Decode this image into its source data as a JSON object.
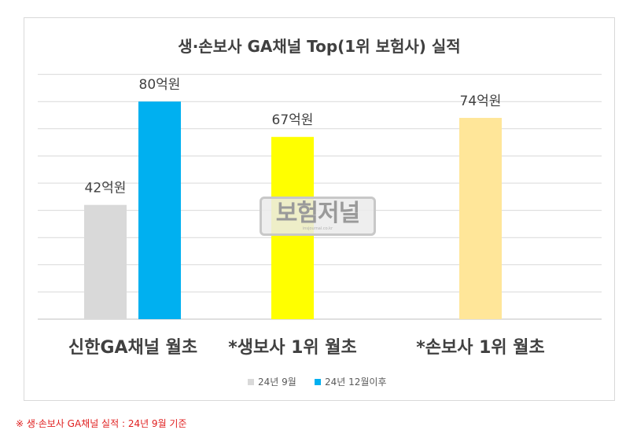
{
  "chart_data": {
    "type": "bar",
    "title": "생·손보사 GA채널  Top(1위 보험사) 실적",
    "categories": [
      "신한GA채널 월초",
      "*생보사 1위 월초",
      "*손보사 1위 월초"
    ],
    "series": [
      {
        "name": "24년 9월",
        "color": "#d9d9d9",
        "values": [
          42,
          null,
          null
        ]
      },
      {
        "name": "24년 12월이후",
        "color": "#00b0f0",
        "values": [
          80,
          null,
          null
        ]
      }
    ],
    "single_bars": [
      {
        "category_index": 1,
        "value": 67,
        "color": "#ffff00"
      },
      {
        "category_index": 2,
        "value": 74,
        "color": "#ffe699"
      }
    ],
    "data_labels": {
      "s0_c0": "42억원",
      "s1_c0": "80억원",
      "c1": "67억원",
      "c2": "74억원"
    },
    "ylim": [
      0,
      90
    ],
    "grid": true,
    "legend_position": "bottom"
  },
  "watermark": {
    "main": "보험저널",
    "sub": "insjournal.co.kr"
  },
  "footnote": "※ 생·손보사 GA채널 실적 : 24년 9월 기준"
}
